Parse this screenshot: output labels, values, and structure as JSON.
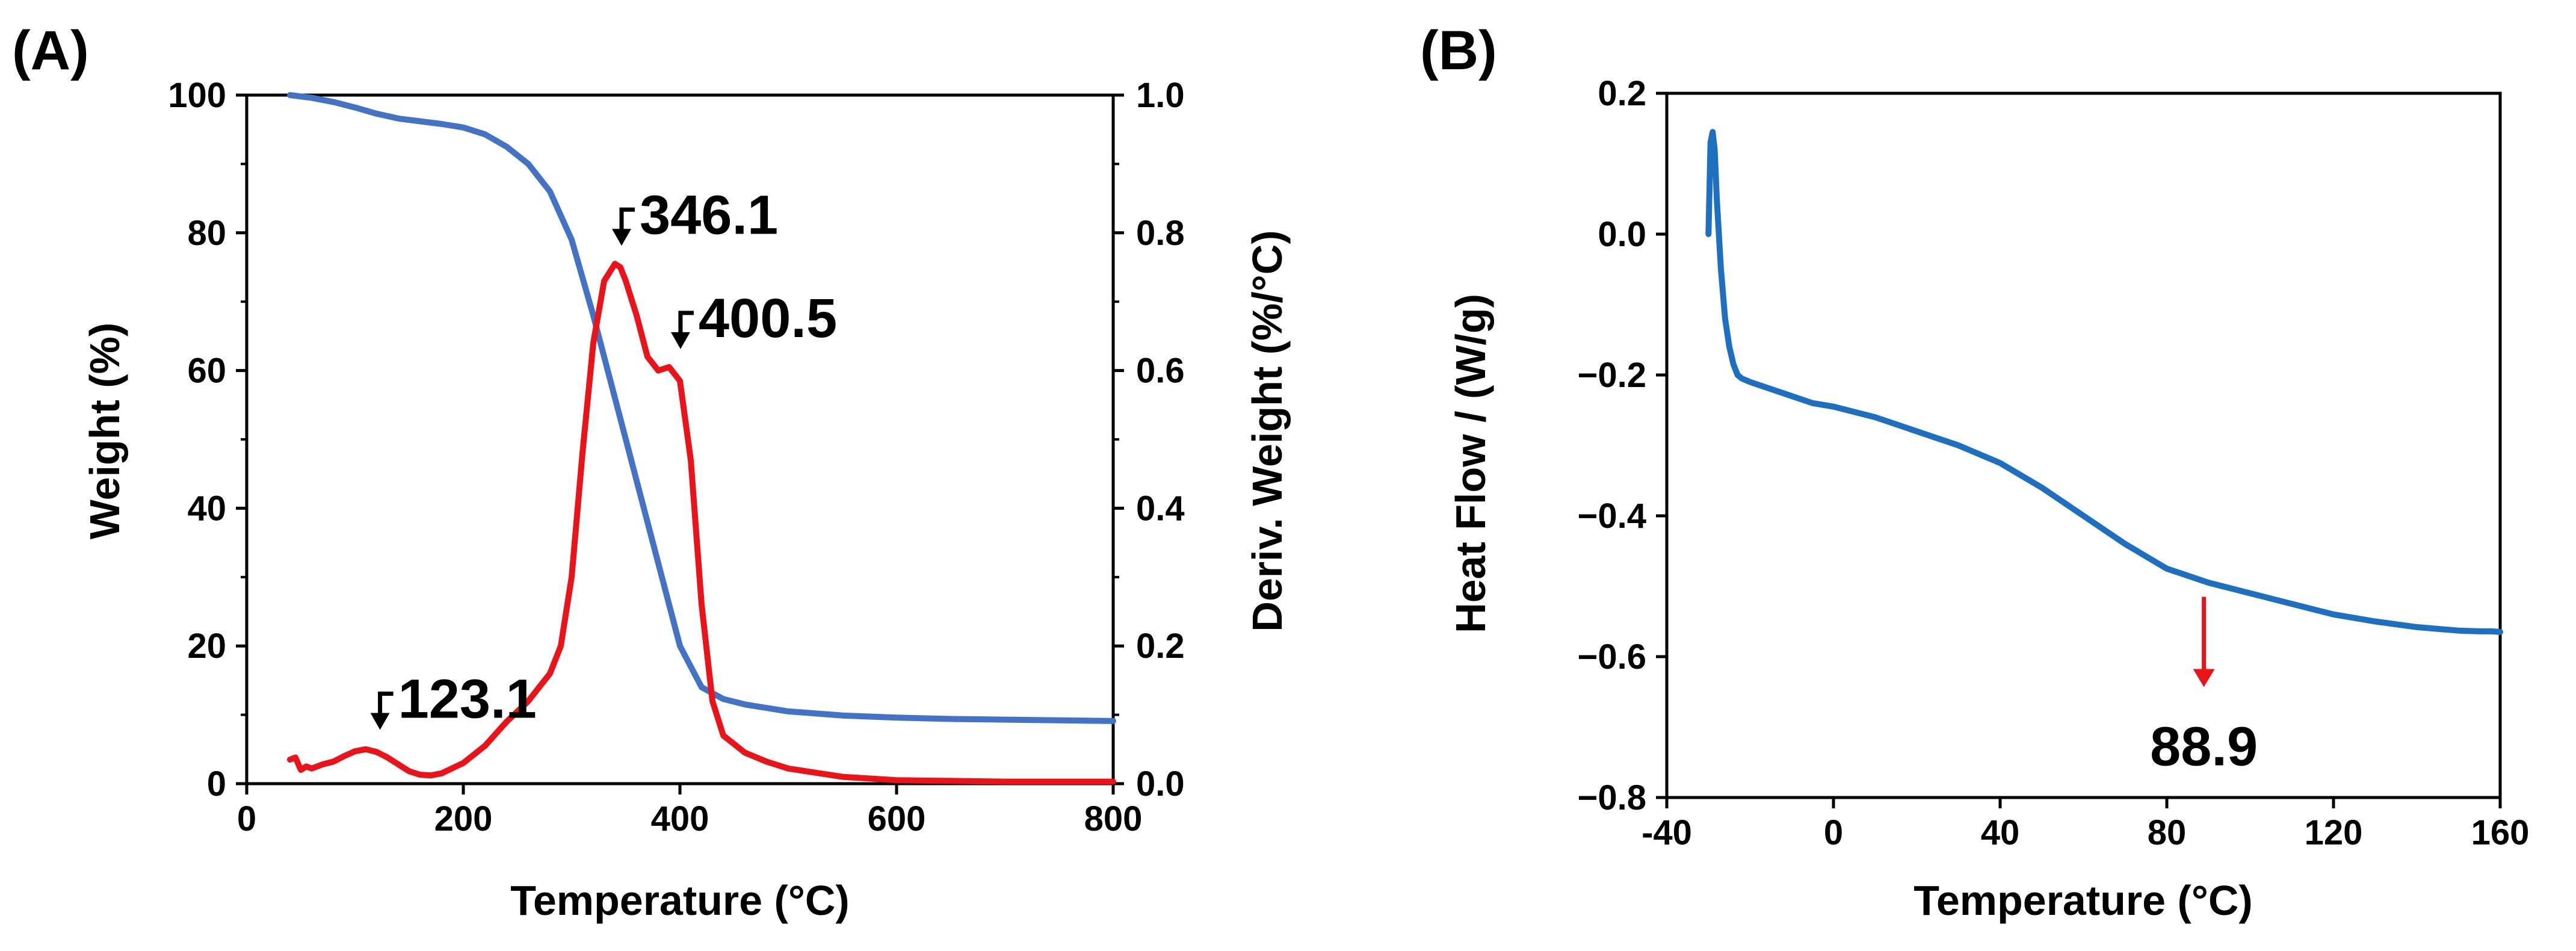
{
  "chart_data": [
    {
      "panel": "(A)",
      "type": "line",
      "xlabel": "Temperature (°C)",
      "ylabel": "Weight (%)",
      "y2label": "Deriv. Weight (%/°C)",
      "xlim": [
        0,
        800
      ],
      "ylim": [
        0,
        100
      ],
      "y2lim": [
        0,
        1.0
      ],
      "xticks": [
        "0",
        "200",
        "400",
        "600",
        "800"
      ],
      "yticks": [
        "0",
        "20",
        "40",
        "60",
        "80",
        "100"
      ],
      "y2ticks": [
        "0.0",
        "0.2",
        "0.4",
        "0.6",
        "0.8",
        "1.0"
      ],
      "grid": false,
      "series": [
        {
          "name": "Weight",
          "axis": "left",
          "color": "#4472C4",
          "x": [
            40,
            60,
            80,
            100,
            120,
            140,
            160,
            180,
            200,
            220,
            240,
            260,
            280,
            300,
            320,
            340,
            360,
            380,
            400,
            420,
            440,
            460,
            480,
            500,
            550,
            600,
            650,
            700,
            750,
            800
          ],
          "y": [
            100,
            99.6,
            99,
            98.2,
            97.3,
            96.6,
            96.2,
            95.8,
            95.3,
            94.3,
            92.5,
            90,
            86,
            79,
            68,
            56,
            44,
            32,
            20,
            14,
            12.3,
            11.5,
            11,
            10.5,
            9.9,
            9.6,
            9.4,
            9.3,
            9.2,
            9.1
          ]
        },
        {
          "name": "Deriv. Weight",
          "axis": "right",
          "color": "#E8141A",
          "x": [
            40,
            45,
            50,
            55,
            60,
            70,
            80,
            90,
            100,
            110,
            120,
            130,
            140,
            150,
            160,
            170,
            180,
            200,
            220,
            240,
            260,
            280,
            290,
            300,
            310,
            320,
            330,
            340,
            345,
            350,
            360,
            370,
            380,
            390,
            400,
            410,
            420,
            430,
            440,
            460,
            480,
            500,
            550,
            600,
            650,
            700,
            750,
            800
          ],
          "y": [
            0.035,
            0.038,
            0.02,
            0.025,
            0.022,
            0.028,
            0.032,
            0.04,
            0.047,
            0.05,
            0.046,
            0.038,
            0.028,
            0.018,
            0.013,
            0.012,
            0.015,
            0.03,
            0.055,
            0.09,
            0.12,
            0.16,
            0.2,
            0.3,
            0.48,
            0.64,
            0.73,
            0.755,
            0.75,
            0.73,
            0.68,
            0.62,
            0.6,
            0.605,
            0.585,
            0.47,
            0.26,
            0.12,
            0.07,
            0.045,
            0.032,
            0.022,
            0.01,
            0.005,
            0.004,
            0.003,
            0.003,
            0.003
          ]
        }
      ],
      "annotations": [
        {
          "text": "123.1",
          "x": 123.1,
          "y": 0.052,
          "axis": "right"
        },
        {
          "text": "346.1",
          "x": 346.1,
          "y": 0.755,
          "axis": "right"
        },
        {
          "text": "400.5",
          "x": 400.5,
          "y": 0.605,
          "axis": "right"
        }
      ]
    },
    {
      "panel": "(B)",
      "type": "line",
      "xlabel": "Temperature (°C)",
      "ylabel": "Heat Flow / (W/g)",
      "xlim": [
        -40,
        160
      ],
      "ylim": [
        -0.8,
        0.2
      ],
      "xticks": [
        "-40",
        "0",
        "40",
        "80",
        "120",
        "160"
      ],
      "yticks": [
        "−0.8",
        "−0.6",
        "−0.4",
        "−0.2",
        "0.0",
        "0.2"
      ],
      "grid": false,
      "series": [
        {
          "name": "Heat Flow",
          "color": "#1F6FC0",
          "x": [
            -30,
            -29.5,
            -29,
            -28.5,
            -28,
            -27,
            -26,
            -25,
            -24,
            -23,
            -22,
            -20,
            -15,
            -10,
            -5,
            0,
            10,
            20,
            30,
            40,
            50,
            60,
            70,
            80,
            85,
            90,
            100,
            110,
            120,
            130,
            140,
            150,
            155,
            158,
            160
          ],
          "y": [
            0.0,
            0.13,
            0.145,
            0.12,
            0.05,
            -0.05,
            -0.12,
            -0.16,
            -0.185,
            -0.2,
            -0.205,
            -0.21,
            -0.22,
            -0.23,
            -0.24,
            -0.245,
            -0.26,
            -0.28,
            -0.3,
            -0.325,
            -0.36,
            -0.4,
            -0.44,
            -0.475,
            -0.485,
            -0.495,
            -0.51,
            -0.525,
            -0.54,
            -0.55,
            -0.558,
            -0.563,
            -0.564,
            -0.564,
            -0.565
          ]
        }
      ],
      "annotations": [
        {
          "text": "88.9",
          "x": 88.9,
          "y": -0.515
        }
      ]
    }
  ]
}
